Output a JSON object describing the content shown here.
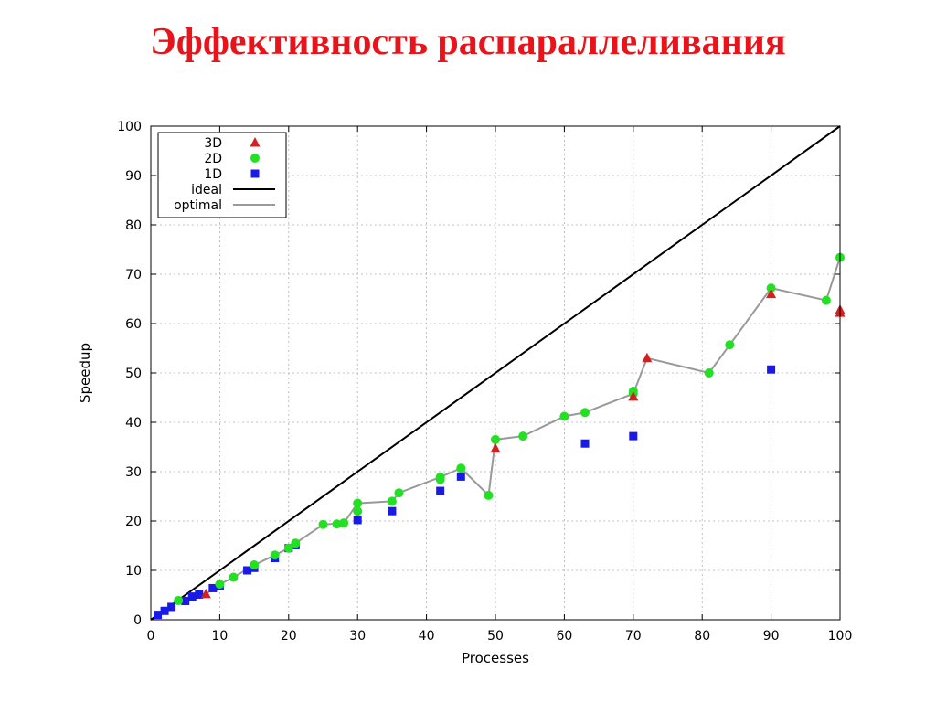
{
  "title": "Эффективность распараллеливания",
  "chart_data": {
    "type": "scatter",
    "xlabel": "Processes",
    "ylabel": "Speedup",
    "xlim": [
      0,
      100
    ],
    "ylim": [
      0,
      100
    ],
    "x_ticks": [
      "0",
      "10",
      "20",
      "30",
      "40",
      "50",
      "60",
      "70",
      "80",
      "90",
      "100"
    ],
    "y_ticks": [
      "0",
      "10",
      "20",
      "30",
      "40",
      "50",
      "60",
      "70",
      "80",
      "90",
      "100"
    ],
    "grid": true,
    "legend_position": "top-left",
    "series": [
      {
        "name": "3D",
        "marker": "triangle",
        "color": "#d62020",
        "points": [
          [
            8,
            5.2
          ],
          [
            50,
            34.7
          ],
          [
            70,
            45.2
          ],
          [
            72,
            53
          ],
          [
            90,
            66
          ],
          [
            100,
            62.2
          ],
          [
            100,
            62.8
          ]
        ]
      },
      {
        "name": "2D",
        "marker": "circle",
        "color": "#22e022",
        "points": [
          [
            4,
            3.9
          ],
          [
            10,
            7.2
          ],
          [
            12,
            8.6
          ],
          [
            15,
            11.1
          ],
          [
            18,
            13.1
          ],
          [
            20,
            14.5
          ],
          [
            21,
            15.5
          ],
          [
            25,
            19.3
          ],
          [
            27,
            19.4
          ],
          [
            28,
            19.6
          ],
          [
            30,
            22
          ],
          [
            30,
            23.6
          ],
          [
            35,
            24
          ],
          [
            36,
            25.7
          ],
          [
            42,
            28.4
          ],
          [
            42,
            28.9
          ],
          [
            45,
            30.7
          ],
          [
            49,
            25.2
          ],
          [
            50,
            36.5
          ],
          [
            54,
            37.2
          ],
          [
            60,
            41.2
          ],
          [
            63,
            42
          ],
          [
            70,
            45.8
          ],
          [
            70,
            46.3
          ],
          [
            81,
            50
          ],
          [
            84,
            55.7
          ],
          [
            90,
            67.2
          ],
          [
            98,
            64.7
          ],
          [
            100,
            73.4
          ]
        ]
      },
      {
        "name": "1D",
        "marker": "square",
        "color": "#1a1ae6",
        "points": [
          [
            1,
            1
          ],
          [
            2,
            1.8
          ],
          [
            3,
            2.6
          ],
          [
            5,
            3.8
          ],
          [
            6,
            4.7
          ],
          [
            7,
            5.1
          ],
          [
            9,
            6.4
          ],
          [
            10,
            6.8
          ],
          [
            14,
            10
          ],
          [
            15,
            10.5
          ],
          [
            18,
            12.5
          ],
          [
            20,
            14.5
          ],
          [
            21,
            15.1
          ],
          [
            30,
            20.2
          ],
          [
            35,
            22
          ],
          [
            42,
            26.1
          ],
          [
            45,
            29
          ],
          [
            63,
            35.7
          ],
          [
            70,
            37.2
          ],
          [
            90,
            50.7
          ]
        ]
      },
      {
        "name": "ideal",
        "type": "line",
        "color": "#000000",
        "points": [
          [
            0,
            0
          ],
          [
            100,
            100
          ]
        ]
      },
      {
        "name": "optimal",
        "type": "line",
        "color": "#999999",
        "points": [
          [
            1,
            1
          ],
          [
            2,
            1.8
          ],
          [
            3,
            2.6
          ],
          [
            4,
            3.9
          ],
          [
            6,
            4.7
          ],
          [
            7,
            5.1
          ],
          [
            8,
            5.2
          ],
          [
            10,
            7.2
          ],
          [
            12,
            8.6
          ],
          [
            15,
            11.1
          ],
          [
            18,
            13.1
          ],
          [
            20,
            14.5
          ],
          [
            21,
            15.5
          ],
          [
            25,
            19.3
          ],
          [
            28,
            19.6
          ],
          [
            30,
            23.6
          ],
          [
            35,
            24
          ],
          [
            36,
            25.7
          ],
          [
            42,
            28.9
          ],
          [
            45,
            30.7
          ],
          [
            49,
            25.2
          ],
          [
            50,
            36.5
          ],
          [
            54,
            37.2
          ],
          [
            60,
            41.2
          ],
          [
            63,
            42
          ],
          [
            70,
            45.8
          ],
          [
            72,
            53
          ],
          [
            81,
            50
          ],
          [
            84,
            55.7
          ],
          [
            90,
            67.2
          ],
          [
            98,
            64.7
          ],
          [
            100,
            73.4
          ]
        ]
      }
    ]
  }
}
